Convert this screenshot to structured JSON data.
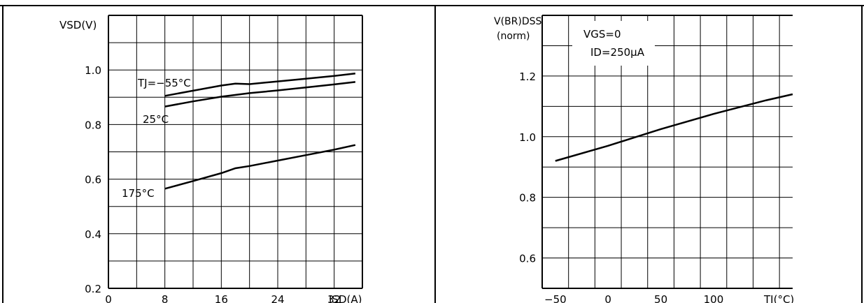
{
  "chart_data": [
    {
      "type": "line",
      "ylabel": "VSD(V)",
      "xlabel": "ISD(A)",
      "header_fragment": "",
      "xlim": [
        0,
        36
      ],
      "ylim": [
        0.2,
        1.2
      ],
      "x_ticks": [
        0,
        8,
        16,
        24,
        32
      ],
      "y_ticks": [
        0.2,
        0.4,
        0.6,
        0.8,
        1.0
      ],
      "x_tick_labels": [
        "0",
        "8",
        "16",
        "24",
        "32"
      ],
      "y_tick_labels": [
        "0.2",
        "0.4",
        "0.6",
        "0.8",
        "1.0"
      ],
      "grid": true,
      "series": [
        {
          "name": "TJ=−55°C",
          "x": [
            8,
            12,
            16,
            18,
            20,
            24,
            28,
            32,
            35
          ],
          "y": [
            0.905,
            0.924,
            0.943,
            0.95,
            0.948,
            0.958,
            0.968,
            0.978,
            0.987
          ]
        },
        {
          "name": "25°C",
          "x": [
            8,
            12,
            16,
            20,
            24,
            28,
            32,
            35
          ],
          "y": [
            0.866,
            0.885,
            0.902,
            0.915,
            0.925,
            0.936,
            0.947,
            0.956
          ]
        },
        {
          "name": "175°C",
          "x": [
            8,
            12,
            16,
            18,
            20,
            24,
            28,
            32,
            35
          ],
          "y": [
            0.565,
            0.593,
            0.622,
            0.64,
            0.648,
            0.668,
            0.688,
            0.708,
            0.725
          ]
        }
      ]
    },
    {
      "type": "line",
      "ylabel": "V(BR)DSS (norm)",
      "xlabel": "TJ(°C)",
      "header_fragment": "",
      "xlim": [
        -62.5,
        175
      ],
      "ylim": [
        0.5,
        1.4
      ],
      "x_ticks": [
        -50,
        0,
        50,
        100,
        150
      ],
      "y_ticks": [
        0.6,
        0.8,
        1.0,
        1.2
      ],
      "x_tick_labels": [
        "−50",
        "0",
        "50",
        "100",
        ""
      ],
      "y_tick_labels": [
        "0.6",
        "0.8",
        "1.0",
        "1.2"
      ],
      "grid": true,
      "annotations": [
        "VGS=0",
        "ID=250μA"
      ],
      "series": [
        {
          "x": [
            -50,
            0,
            50,
            100,
            150,
            175
          ],
          "y": [
            0.92,
            0.97,
            1.025,
            1.075,
            1.12,
            1.14
          ]
        }
      ]
    }
  ]
}
